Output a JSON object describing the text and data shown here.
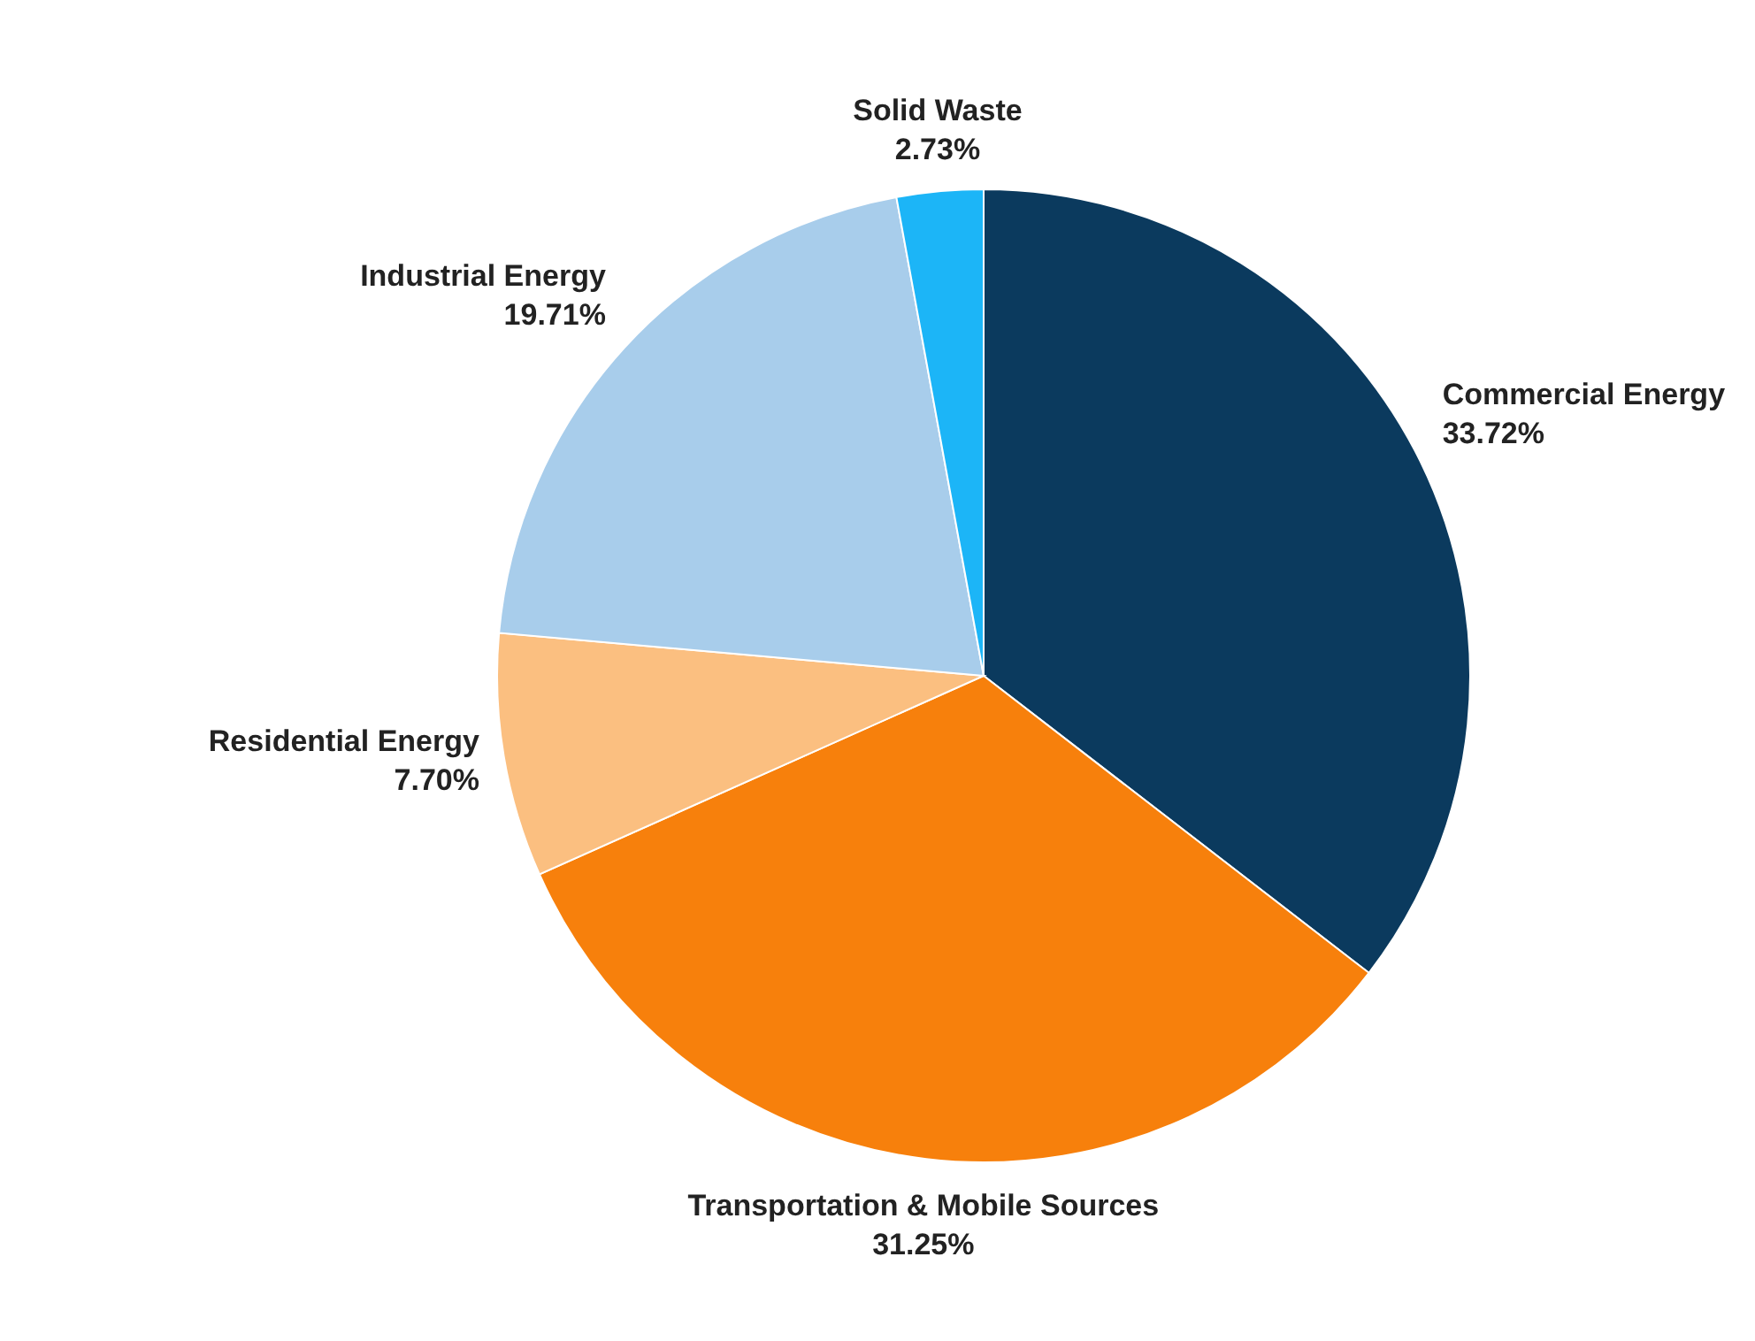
{
  "chart_data": {
    "type": "pie",
    "categories": [
      "Commercial Energy",
      "Transportation & Mobile Sources",
      "Residential Energy",
      "Industrial Energy",
      "Solid Waste"
    ],
    "values": [
      33.72,
      31.25,
      7.7,
      19.71,
      2.73
    ],
    "value_labels": [
      "33.72%",
      "31.25%",
      "7.70%",
      "19.71%",
      "2.73%"
    ],
    "colors": [
      "#0b3a5e",
      "#f7800c",
      "#fbbf80",
      "#a8cdeb",
      "#1cb5f7"
    ]
  }
}
